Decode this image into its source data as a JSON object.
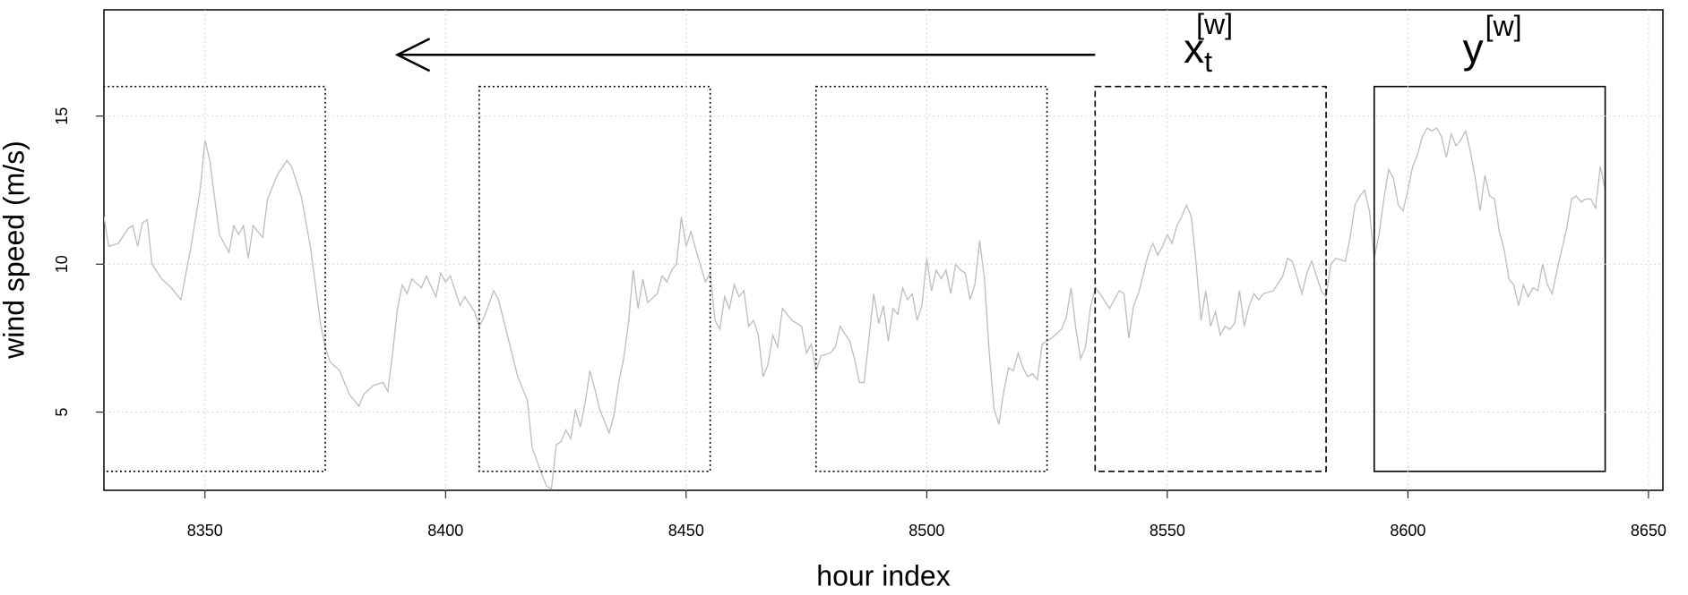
{
  "chart_data": {
    "type": "line",
    "xlabel": "hour index",
    "ylabel": "wind speed (m/s)",
    "xlim": [
      8329,
      8653
    ],
    "ylim": [
      2.36,
      18.59
    ],
    "xticks": [
      8350,
      8400,
      8450,
      8500,
      8550,
      8600,
      8650
    ],
    "yticks": [
      5,
      10,
      15
    ],
    "grid": true,
    "x": [
      8329,
      8330,
      8332,
      8334,
      8335,
      8336,
      8337,
      8338,
      8339,
      8341,
      8343,
      8345,
      8347,
      8349,
      8350,
      8351,
      8353,
      8355,
      8356,
      8357,
      8358,
      8359,
      8360,
      8361,
      8362,
      8363,
      8365,
      8367,
      8368,
      8370,
      8372,
      8374,
      8375,
      8376,
      8378,
      8380,
      8382,
      8383,
      8385,
      8387,
      8388,
      8389,
      8390,
      8391,
      8392,
      8393,
      8395,
      8396,
      8398,
      8399,
      8400,
      8401,
      8403,
      8404,
      8406,
      8407,
      8408,
      8410,
      8411,
      8413,
      8415,
      8417,
      8418,
      8420,
      8421,
      8422,
      8423,
      8424,
      8425,
      8426,
      8427,
      8428,
      8429,
      8430,
      8431,
      8432,
      8433,
      8434,
      8435,
      8436,
      8437,
      8438,
      8439,
      8440,
      8441,
      8442,
      8444,
      8445,
      8446,
      8447,
      8448,
      8449,
      8450,
      8451,
      8452,
      8454,
      8455,
      8456,
      8457,
      8458,
      8459,
      8460,
      8461,
      8462,
      8463,
      8464,
      8465,
      8466,
      8467,
      8468,
      8469,
      8470,
      8472,
      8474,
      8475,
      8476,
      8477,
      8478,
      8480,
      8481,
      8482,
      8484,
      8485,
      8486,
      8487,
      8488,
      8489,
      8490,
      8491,
      8492,
      8493,
      8494,
      8495,
      8496,
      8497,
      8498,
      8499,
      8500,
      8501,
      8502,
      8503,
      8504,
      8505,
      8506,
      8507,
      8508,
      8509,
      8510,
      8511,
      8512,
      8513,
      8514,
      8515,
      8516,
      8517,
      8518,
      8519,
      8520,
      8521,
      8522,
      8523,
      8524,
      8526,
      8528,
      8529,
      8530,
      8531,
      8532,
      8533,
      8534,
      8535,
      8536,
      8538,
      8540,
      8541,
      8542,
      8543,
      8544,
      8546,
      8547,
      8548,
      8549,
      8550,
      8551,
      8552,
      8553,
      8554,
      8555,
      8556,
      8557,
      8558,
      8559,
      8560,
      8561,
      8562,
      8563,
      8564,
      8565,
      8566,
      8567,
      8568,
      8569,
      8570,
      8572,
      8574,
      8575,
      8576,
      8578,
      8579,
      8580,
      8582,
      8583,
      8584,
      8585,
      8587,
      8588,
      8589,
      8590,
      8591,
      8592,
      8593,
      8594,
      8595,
      8596,
      8597,
      8598,
      8599,
      8600,
      8601,
      8602,
      8603,
      8604,
      8605,
      8606,
      8607,
      8608,
      8609,
      8610,
      8611,
      8612,
      8613,
      8614,
      8615,
      8616,
      8617,
      8618,
      8619,
      8620,
      8621,
      8622,
      8623,
      8624,
      8625,
      8626,
      8627,
      8628,
      8629,
      8630,
      8631,
      8632,
      8633,
      8634,
      8635,
      8636,
      8637,
      8638,
      8639,
      8640,
      8641
    ],
    "series": [
      {
        "color": "#bdbdbd",
        "values": [
          11.6,
          10.6,
          10.7,
          11.2,
          11.3,
          10.6,
          11.4,
          11.5,
          10.0,
          9.5,
          9.2,
          8.8,
          10.5,
          12.5,
          14.2,
          13.5,
          11.0,
          10.4,
          11.3,
          11.0,
          11.3,
          10.2,
          11.3,
          11.1,
          10.9,
          12.2,
          13.0,
          13.5,
          13.3,
          12.3,
          10.5,
          8.0,
          7.2,
          6.7,
          6.4,
          5.6,
          5.2,
          5.6,
          5.9,
          6.0,
          5.7,
          7.0,
          8.5,
          9.3,
          9.0,
          9.5,
          9.2,
          9.6,
          8.9,
          9.7,
          9.4,
          9.6,
          8.6,
          8.9,
          8.4,
          7.9,
          8.2,
          9.1,
          8.8,
          7.5,
          6.2,
          5.4,
          3.8,
          2.9,
          2.5,
          2.4,
          3.9,
          4.0,
          4.4,
          4.1,
          5.1,
          4.5,
          5.3,
          6.4,
          5.8,
          5.1,
          4.7,
          4.3,
          4.9,
          6.0,
          6.8,
          8.0,
          9.8,
          8.5,
          9.5,
          8.7,
          9.0,
          9.6,
          9.4,
          9.8,
          10.0,
          11.6,
          10.6,
          11.1,
          10.5,
          9.4,
          9.7,
          8.1,
          7.8,
          8.9,
          8.5,
          9.3,
          8.9,
          9.1,
          7.9,
          8.1,
          7.6,
          6.2,
          6.6,
          7.6,
          7.2,
          8.5,
          8.1,
          7.9,
          7.0,
          7.3,
          6.4,
          6.9,
          7.0,
          7.2,
          7.9,
          7.4,
          6.8,
          6.0,
          6.0,
          7.5,
          9.0,
          8.0,
          8.6,
          7.4,
          8.5,
          8.3,
          9.2,
          8.8,
          9.0,
          8.1,
          8.6,
          10.2,
          9.1,
          9.8,
          9.5,
          9.8,
          9.0,
          10.0,
          9.8,
          9.7,
          8.8,
          9.3,
          10.8,
          9.5,
          7.0,
          5.1,
          4.6,
          5.7,
          6.5,
          6.4,
          7.0,
          6.5,
          6.2,
          6.3,
          6.1,
          7.3,
          7.5,
          7.8,
          8.2,
          9.2,
          7.8,
          6.8,
          7.2,
          8.5,
          9.2,
          9.0,
          8.5,
          9.1,
          9.0,
          7.5,
          8.6,
          9.0,
          10.3,
          10.7,
          10.3,
          10.6,
          11.0,
          10.7,
          11.3,
          11.6,
          12.0,
          11.6,
          10.0,
          8.1,
          9.1,
          7.9,
          8.4,
          7.6,
          7.9,
          7.8,
          8.0,
          9.1,
          7.9,
          8.6,
          9.0,
          8.8,
          9.0,
          9.1,
          9.6,
          10.2,
          10.1,
          9.0,
          9.7,
          10.1,
          9.1,
          8.9,
          10.0,
          10.2,
          10.1,
          10.9,
          12.0,
          12.3,
          12.5,
          11.8,
          10.2,
          11.0,
          12.2,
          13.2,
          12.9,
          12.0,
          11.8,
          12.5,
          13.3,
          13.7,
          14.3,
          14.6,
          14.5,
          14.6,
          14.3,
          13.6,
          14.4,
          14.0,
          14.2,
          14.5,
          13.8,
          12.9,
          11.8,
          13.0,
          12.3,
          12.2,
          11.1,
          10.5,
          9.5,
          9.3,
          8.6,
          9.3,
          8.9,
          9.2,
          9.1,
          10.0,
          9.3,
          9.0,
          9.8,
          10.5,
          11.2,
          12.2,
          12.3,
          12.1,
          12.2,
          12.2,
          11.9,
          13.3,
          12.5
        ]
      }
    ],
    "windows": [
      {
        "x": [
          8327,
          8375
        ],
        "y": [
          3,
          16
        ],
        "style": "dotted"
      },
      {
        "x": [
          8407,
          8455
        ],
        "y": [
          3,
          16
        ],
        "style": "dotted"
      },
      {
        "x": [
          8477,
          8525
        ],
        "y": [
          3,
          16
        ],
        "style": "dotted"
      },
      {
        "x": [
          8535,
          8583
        ],
        "y": [
          3,
          16
        ],
        "style": "dashed"
      },
      {
        "x": [
          8593,
          8641
        ],
        "y": [
          3,
          16
        ],
        "style": "solid"
      }
    ],
    "arrow": {
      "x": [
        8535,
        8390
      ],
      "y": 17.07
    },
    "annotations": [
      {
        "window": 3,
        "text": "x",
        "sub": "t",
        "sup": "[w]"
      },
      {
        "window": 4,
        "text": "y",
        "sup": "[w]"
      }
    ]
  }
}
